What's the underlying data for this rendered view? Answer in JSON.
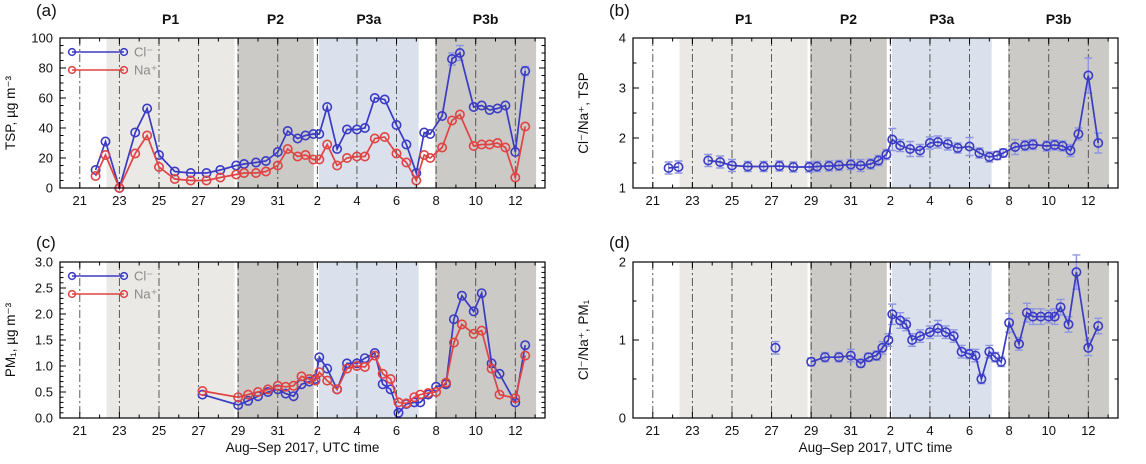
{
  "figure": {
    "background": "#ffffff",
    "x_axis": {
      "label": "Aug–Sep 2017, UTC time",
      "range": [
        -1,
        23.5
      ],
      "major_ticks": [
        0,
        2,
        4,
        6,
        8,
        10,
        12,
        14,
        16,
        18,
        20,
        22
      ],
      "major_labels": [
        "21",
        "23",
        "25",
        "27",
        "29",
        "31",
        "2",
        "4",
        "6",
        "8",
        "10",
        "12"
      ],
      "minor_step": 1
    },
    "periods": [
      {
        "label": "P1",
        "start": 1.35,
        "end": 7.82,
        "color": "#eae9e6"
      },
      {
        "label": "P2",
        "start": 7.95,
        "end": 11.82,
        "color": "#cbcac7"
      },
      {
        "label": "P3a",
        "start": 12.08,
        "end": 17.12,
        "color": "#dbe1ec"
      },
      {
        "label": "P3b",
        "start": 17.95,
        "end": 23.05,
        "color": "#cbcac7"
      }
    ],
    "colors": {
      "cl": "#3b3bc4",
      "na": "#e04343",
      "cl_err": "#8f97dd",
      "grid": "#4a4a4a",
      "frame": "#000000",
      "legend_text": "#8a8a8a"
    },
    "legend_labels": {
      "cl": "Cl⁻",
      "na": "Na⁺"
    }
  },
  "chart_data": [
    {
      "id": "a",
      "panel_label": "(a)",
      "type": "line",
      "ylabel": "TSP, µg m⁻³",
      "ylim": [
        0,
        100
      ],
      "yticks": [
        0,
        20,
        40,
        60,
        80,
        100
      ],
      "ytick_labels": [
        "0",
        "20",
        "40",
        "60",
        "80",
        "100"
      ],
      "y_minor_step": 5,
      "show_period_labels": true,
      "legend": true,
      "xlabel": false,
      "series": [
        {
          "key": "cl",
          "name": "Cl⁻",
          "x": [
            0.8,
            1.3,
            2.0,
            2.8,
            3.4,
            4.0,
            4.8,
            5.6,
            6.4,
            7.1,
            7.9,
            8.3,
            8.9,
            9.4,
            10.0,
            10.5,
            11.0,
            11.4,
            11.8,
            12.1,
            12.5,
            13.0,
            13.5,
            14.0,
            14.4,
            14.9,
            15.4,
            16.0,
            16.5,
            17.0,
            17.4,
            17.7,
            18.3,
            18.8,
            19.2,
            19.9,
            20.3,
            20.7,
            21.1,
            21.5,
            22.0,
            22.5
          ],
          "y": [
            12,
            31,
            0,
            37,
            53,
            22,
            11,
            10,
            10,
            12,
            15,
            16,
            17,
            18,
            24,
            38,
            33,
            35,
            36,
            36,
            54,
            26,
            39,
            39,
            40,
            60,
            59,
            42,
            29,
            10,
            37,
            36,
            48,
            86,
            90,
            54,
            55,
            52,
            53,
            55,
            24,
            78
          ],
          "yerr": [
            0,
            0,
            0,
            0,
            0,
            0,
            0,
            0,
            0,
            0,
            0,
            0,
            0,
            0,
            0,
            0,
            0,
            0,
            0,
            0,
            0,
            0,
            0,
            0,
            0,
            0,
            0,
            0,
            0,
            0,
            0,
            0,
            0,
            4,
            5,
            0,
            0,
            0,
            0,
            0,
            0,
            3
          ]
        },
        {
          "key": "na",
          "name": "Na⁺",
          "x": [
            0.8,
            1.3,
            2.0,
            2.8,
            3.4,
            4.0,
            4.8,
            5.6,
            6.4,
            7.1,
            7.9,
            8.3,
            8.9,
            9.4,
            10.0,
            10.5,
            11.0,
            11.4,
            11.8,
            12.1,
            12.5,
            13.0,
            13.5,
            14.0,
            14.4,
            14.9,
            15.4,
            16.0,
            16.5,
            17.0,
            17.4,
            17.7,
            18.3,
            18.8,
            19.2,
            19.9,
            20.3,
            20.7,
            21.1,
            21.5,
            22.0,
            22.5
          ],
          "y": [
            8,
            22,
            0,
            23,
            35,
            14,
            6,
            5,
            5,
            7,
            9,
            10,
            10,
            11,
            15,
            26,
            21,
            22,
            19,
            19,
            29,
            15,
            20,
            21,
            21,
            33,
            34,
            23,
            17,
            5,
            22,
            20,
            27,
            45,
            49,
            28,
            29,
            29,
            30,
            27,
            7,
            41
          ]
        }
      ]
    },
    {
      "id": "b",
      "panel_label": "(b)",
      "type": "line",
      "ylabel": "Cl⁻/Na⁺, TSP",
      "ylim": [
        1,
        4
      ],
      "yticks": [
        1,
        2,
        3,
        4
      ],
      "ytick_labels": [
        "1",
        "2",
        "3",
        "4"
      ],
      "y_minor_step": 0.5,
      "show_period_labels": true,
      "legend": false,
      "xlabel": false,
      "series": [
        {
          "key": "cl",
          "name": "Cl⁻/Na⁺",
          "x": [
            0.8,
            1.3,
            2.0,
            2.8,
            3.4,
            4.0,
            4.8,
            5.6,
            6.4,
            7.1,
            7.9,
            8.3,
            8.9,
            9.4,
            10.0,
            10.5,
            11.0,
            11.4,
            11.8,
            12.1,
            12.5,
            13.0,
            13.5,
            14.0,
            14.4,
            14.9,
            15.4,
            16.0,
            16.5,
            17.0,
            17.4,
            17.7,
            18.3,
            18.8,
            19.2,
            19.9,
            20.3,
            20.7,
            21.1,
            21.5,
            22.0,
            22.5
          ],
          "y": [
            1.4,
            1.42,
            null,
            1.55,
            1.52,
            1.45,
            1.43,
            1.43,
            1.44,
            1.42,
            1.42,
            1.43,
            1.44,
            1.45,
            1.47,
            1.45,
            1.48,
            1.55,
            1.67,
            1.97,
            1.85,
            1.78,
            1.75,
            1.9,
            1.92,
            1.88,
            1.8,
            1.83,
            1.7,
            1.62,
            1.65,
            1.7,
            1.82,
            1.85,
            1.87,
            1.84,
            1.86,
            1.84,
            1.75,
            2.08,
            3.25,
            1.9
          ],
          "yerr": [
            0.12,
            0.12,
            null,
            0.12,
            0.12,
            0.12,
            0.1,
            0.1,
            0.1,
            0.1,
            0.1,
            0.1,
            0.1,
            0.1,
            0.1,
            0.12,
            0.1,
            0.1,
            0.1,
            0.22,
            0.12,
            0.15,
            0.12,
            0.12,
            0.12,
            0.12,
            0.1,
            0.18,
            0.1,
            0.1,
            0.08,
            0.08,
            0.15,
            0.1,
            0.1,
            0.1,
            0.1,
            0.1,
            0.12,
            0.12,
            0.35,
            0.2
          ]
        }
      ]
    },
    {
      "id": "c",
      "panel_label": "(c)",
      "type": "line",
      "ylabel": "PM₁, µg m⁻³",
      "ylim": [
        0,
        3
      ],
      "yticks": [
        0,
        0.5,
        1,
        1.5,
        2,
        2.5,
        3
      ],
      "ytick_labels": [
        "0.0",
        "0.5",
        "1.0",
        "1.5",
        "2.0",
        "2.5",
        "3.0"
      ],
      "y_minor_step": 0.1,
      "show_period_labels": false,
      "legend": true,
      "xlabel": true,
      "series": [
        {
          "key": "cl",
          "name": "Cl⁻",
          "x": [
            6.2,
            8.0,
            8.5,
            9.0,
            9.5,
            10.0,
            10.4,
            10.8,
            11.2,
            11.6,
            11.9,
            12.1,
            12.5,
            13.0,
            13.5,
            14.0,
            14.4,
            14.9,
            15.3,
            15.7,
            16.1,
            16.5,
            16.9,
            17.2,
            17.6,
            18.0,
            18.5,
            18.9,
            19.3,
            19.9,
            20.3,
            20.8,
            21.2,
            22.0,
            22.5
          ],
          "y": [
            0.45,
            0.25,
            0.33,
            0.42,
            0.5,
            0.55,
            0.47,
            0.42,
            0.65,
            0.7,
            0.75,
            1.17,
            0.95,
            0.55,
            1.05,
            1.05,
            1.15,
            1.25,
            0.65,
            0.55,
            0.1,
            0.27,
            0.3,
            0.3,
            0.45,
            0.6,
            0.65,
            1.9,
            2.35,
            2.05,
            2.4,
            1.05,
            0.85,
            0.3,
            1.4
          ]
        },
        {
          "key": "na",
          "name": "Na⁺",
          "x": [
            6.2,
            8.0,
            8.5,
            9.0,
            9.5,
            10.0,
            10.4,
            10.8,
            11.2,
            11.6,
            11.9,
            12.1,
            12.5,
            13.0,
            13.5,
            14.0,
            14.4,
            14.9,
            15.3,
            15.7,
            16.1,
            16.5,
            16.9,
            17.2,
            17.6,
            18.0,
            18.5,
            18.9,
            19.3,
            19.9,
            20.3,
            20.8,
            21.2,
            22.0,
            22.5
          ],
          "y": [
            0.52,
            0.4,
            0.45,
            0.5,
            0.55,
            0.62,
            0.6,
            0.62,
            0.8,
            0.75,
            0.72,
            0.88,
            0.72,
            0.55,
            0.95,
            1.0,
            0.98,
            1.2,
            0.85,
            0.75,
            0.3,
            0.28,
            0.4,
            0.45,
            0.48,
            0.5,
            0.68,
            1.45,
            1.8,
            1.62,
            1.68,
            0.95,
            0.45,
            0.38,
            1.2
          ]
        }
      ]
    },
    {
      "id": "d",
      "panel_label": "(d)",
      "type": "line",
      "ylabel": "Cl⁻/Na⁺, PM₁",
      "ylim": [
        0,
        2
      ],
      "yticks": [
        0,
        1,
        2
      ],
      "ytick_labels": [
        "0",
        "1",
        "2"
      ],
      "y_minor_step": 0.5,
      "show_period_labels": false,
      "legend": false,
      "xlabel": true,
      "series": [
        {
          "key": "cl",
          "name": "Cl⁻/Na⁺",
          "x": [
            6.2,
            7.0,
            8.0,
            8.7,
            9.4,
            10.0,
            10.5,
            10.9,
            11.3,
            11.6,
            11.9,
            12.1,
            12.5,
            12.8,
            13.1,
            13.5,
            14.0,
            14.4,
            14.8,
            15.2,
            15.6,
            16.0,
            16.3,
            16.6,
            17.0,
            17.3,
            17.6,
            18.0,
            18.5,
            18.9,
            19.2,
            19.6,
            20.0,
            20.3,
            20.6,
            21.0,
            21.4,
            22.0,
            22.5
          ],
          "y": [
            0.9,
            null,
            0.72,
            0.78,
            0.78,
            0.8,
            0.7,
            0.78,
            0.8,
            0.9,
            1.0,
            1.33,
            1.25,
            1.2,
            1.0,
            1.05,
            1.1,
            1.15,
            1.1,
            1.05,
            0.85,
            0.82,
            0.8,
            0.5,
            0.85,
            0.78,
            0.72,
            1.22,
            0.95,
            1.35,
            1.3,
            1.3,
            1.3,
            1.3,
            1.42,
            1.2,
            1.87,
            0.9,
            1.18
          ],
          "yerr": [
            0.08,
            null,
            0.05,
            0.06,
            0.06,
            0.08,
            0.05,
            0.05,
            0.06,
            0.08,
            0.08,
            0.13,
            0.1,
            0.08,
            0.08,
            0.08,
            0.08,
            0.1,
            0.08,
            0.08,
            0.08,
            0.06,
            0.08,
            0.06,
            0.08,
            0.06,
            0.06,
            0.12,
            0.08,
            0.12,
            0.1,
            0.1,
            0.08,
            0.1,
            0.1,
            0.1,
            0.22,
            0.1,
            0.1
          ]
        }
      ]
    }
  ]
}
